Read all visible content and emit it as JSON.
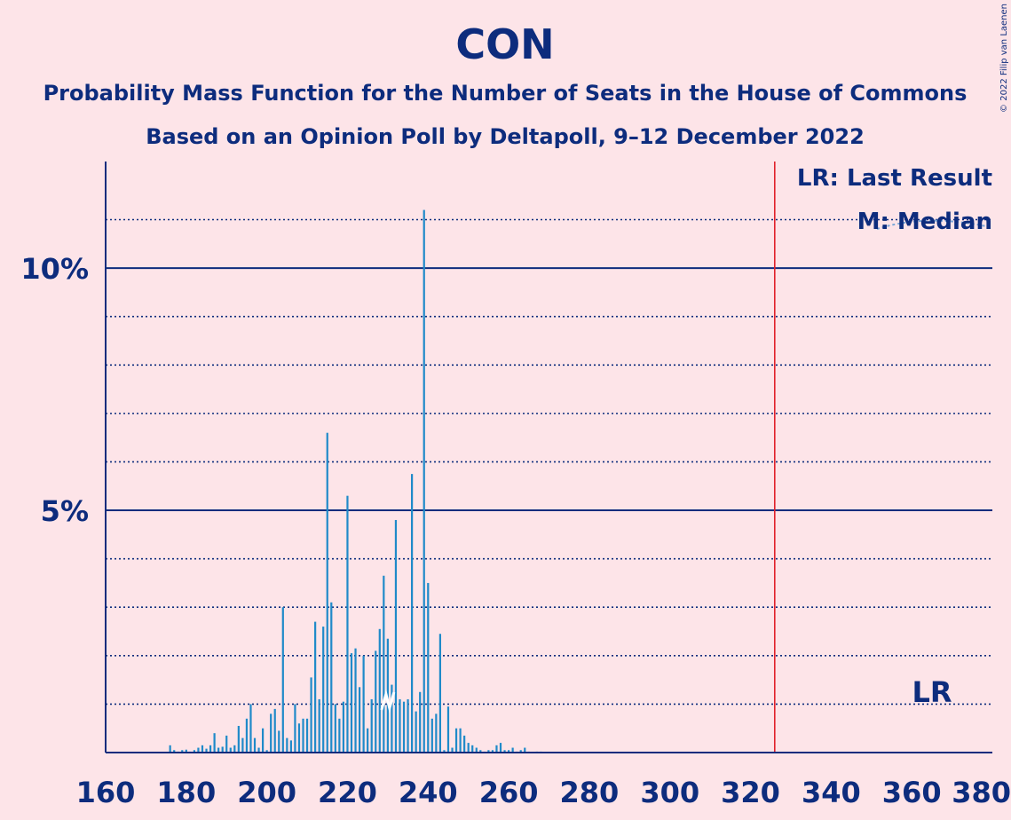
{
  "chart_data": {
    "type": "bar",
    "title": "CON",
    "subtitle": "Probability Mass Function for the Number of Seats in the House of Commons",
    "subtitle2": "Based on an Opinion Poll by Deltapoll, 9–12 December 2022",
    "copyright": "© 2022 Filip van Laenen",
    "xlim": [
      160,
      380
    ],
    "ylim": [
      0,
      12.2
    ],
    "x_ticks": [
      "160",
      "180",
      "200",
      "220",
      "240",
      "260",
      "280",
      "300",
      "320",
      "340",
      "360",
      "380"
    ],
    "y_ticks": [
      {
        "label": "5%",
        "value": 5
      },
      {
        "label": "10%",
        "value": 10
      }
    ],
    "minor_grid": [
      1,
      2,
      3,
      4,
      6,
      7,
      8,
      9,
      11
    ],
    "last_result": 326,
    "median": 230,
    "legend": {
      "lr": "LR: Last Result",
      "m": "M: Median"
    },
    "lr_label": "LR",
    "bar_color": "#1f8ac9",
    "ref_line_color": "#e0202a",
    "axis_color": "#0d2c7d",
    "x": [
      176,
      177,
      178,
      179,
      180,
      181,
      182,
      183,
      184,
      185,
      186,
      187,
      188,
      189,
      190,
      191,
      192,
      193,
      194,
      195,
      196,
      197,
      198,
      199,
      200,
      201,
      202,
      203,
      204,
      205,
      206,
      207,
      208,
      209,
      210,
      211,
      212,
      213,
      214,
      215,
      216,
      217,
      218,
      219,
      220,
      221,
      222,
      223,
      224,
      225,
      226,
      227,
      228,
      229,
      230,
      231,
      232,
      233,
      234,
      235,
      236,
      237,
      238,
      239,
      240,
      241,
      242,
      243,
      244,
      245,
      246,
      247,
      248,
      249,
      250,
      251,
      252,
      253,
      254,
      255,
      256,
      257,
      258,
      259,
      260,
      261,
      262,
      263,
      264,
      265,
      266,
      267,
      268
    ],
    "values": [
      0.15,
      0.05,
      0.02,
      0.05,
      0.06,
      0.02,
      0.05,
      0.1,
      0.15,
      0.08,
      0.15,
      0.4,
      0.1,
      0.12,
      0.35,
      0.1,
      0.15,
      0.55,
      0.3,
      0.7,
      1.0,
      0.3,
      0.1,
      0.5,
      0.05,
      0.8,
      0.9,
      0.45,
      3.0,
      0.3,
      0.25,
      1.0,
      0.6,
      0.7,
      0.7,
      1.55,
      2.7,
      1.1,
      2.6,
      6.6,
      3.1,
      1.0,
      0.7,
      1.05,
      5.3,
      2.05,
      2.15,
      1.35,
      2.0,
      0.5,
      1.1,
      2.1,
      2.55,
      3.65,
      2.35,
      1.4,
      4.8,
      1.1,
      1.05,
      1.1,
      5.75,
      0.85,
      1.25,
      11.2,
      3.5,
      0.7,
      0.8,
      2.45,
      0.05,
      0.95,
      0.1,
      0.5,
      0.5,
      0.35,
      0.2,
      0.15,
      0.1,
      0.05,
      0.02,
      0.05,
      0.05,
      0.15,
      0.2,
      0.05,
      0.05,
      0.1,
      0.02,
      0.05,
      0.1,
      0.02,
      0.01,
      0.02,
      0.02
    ]
  }
}
